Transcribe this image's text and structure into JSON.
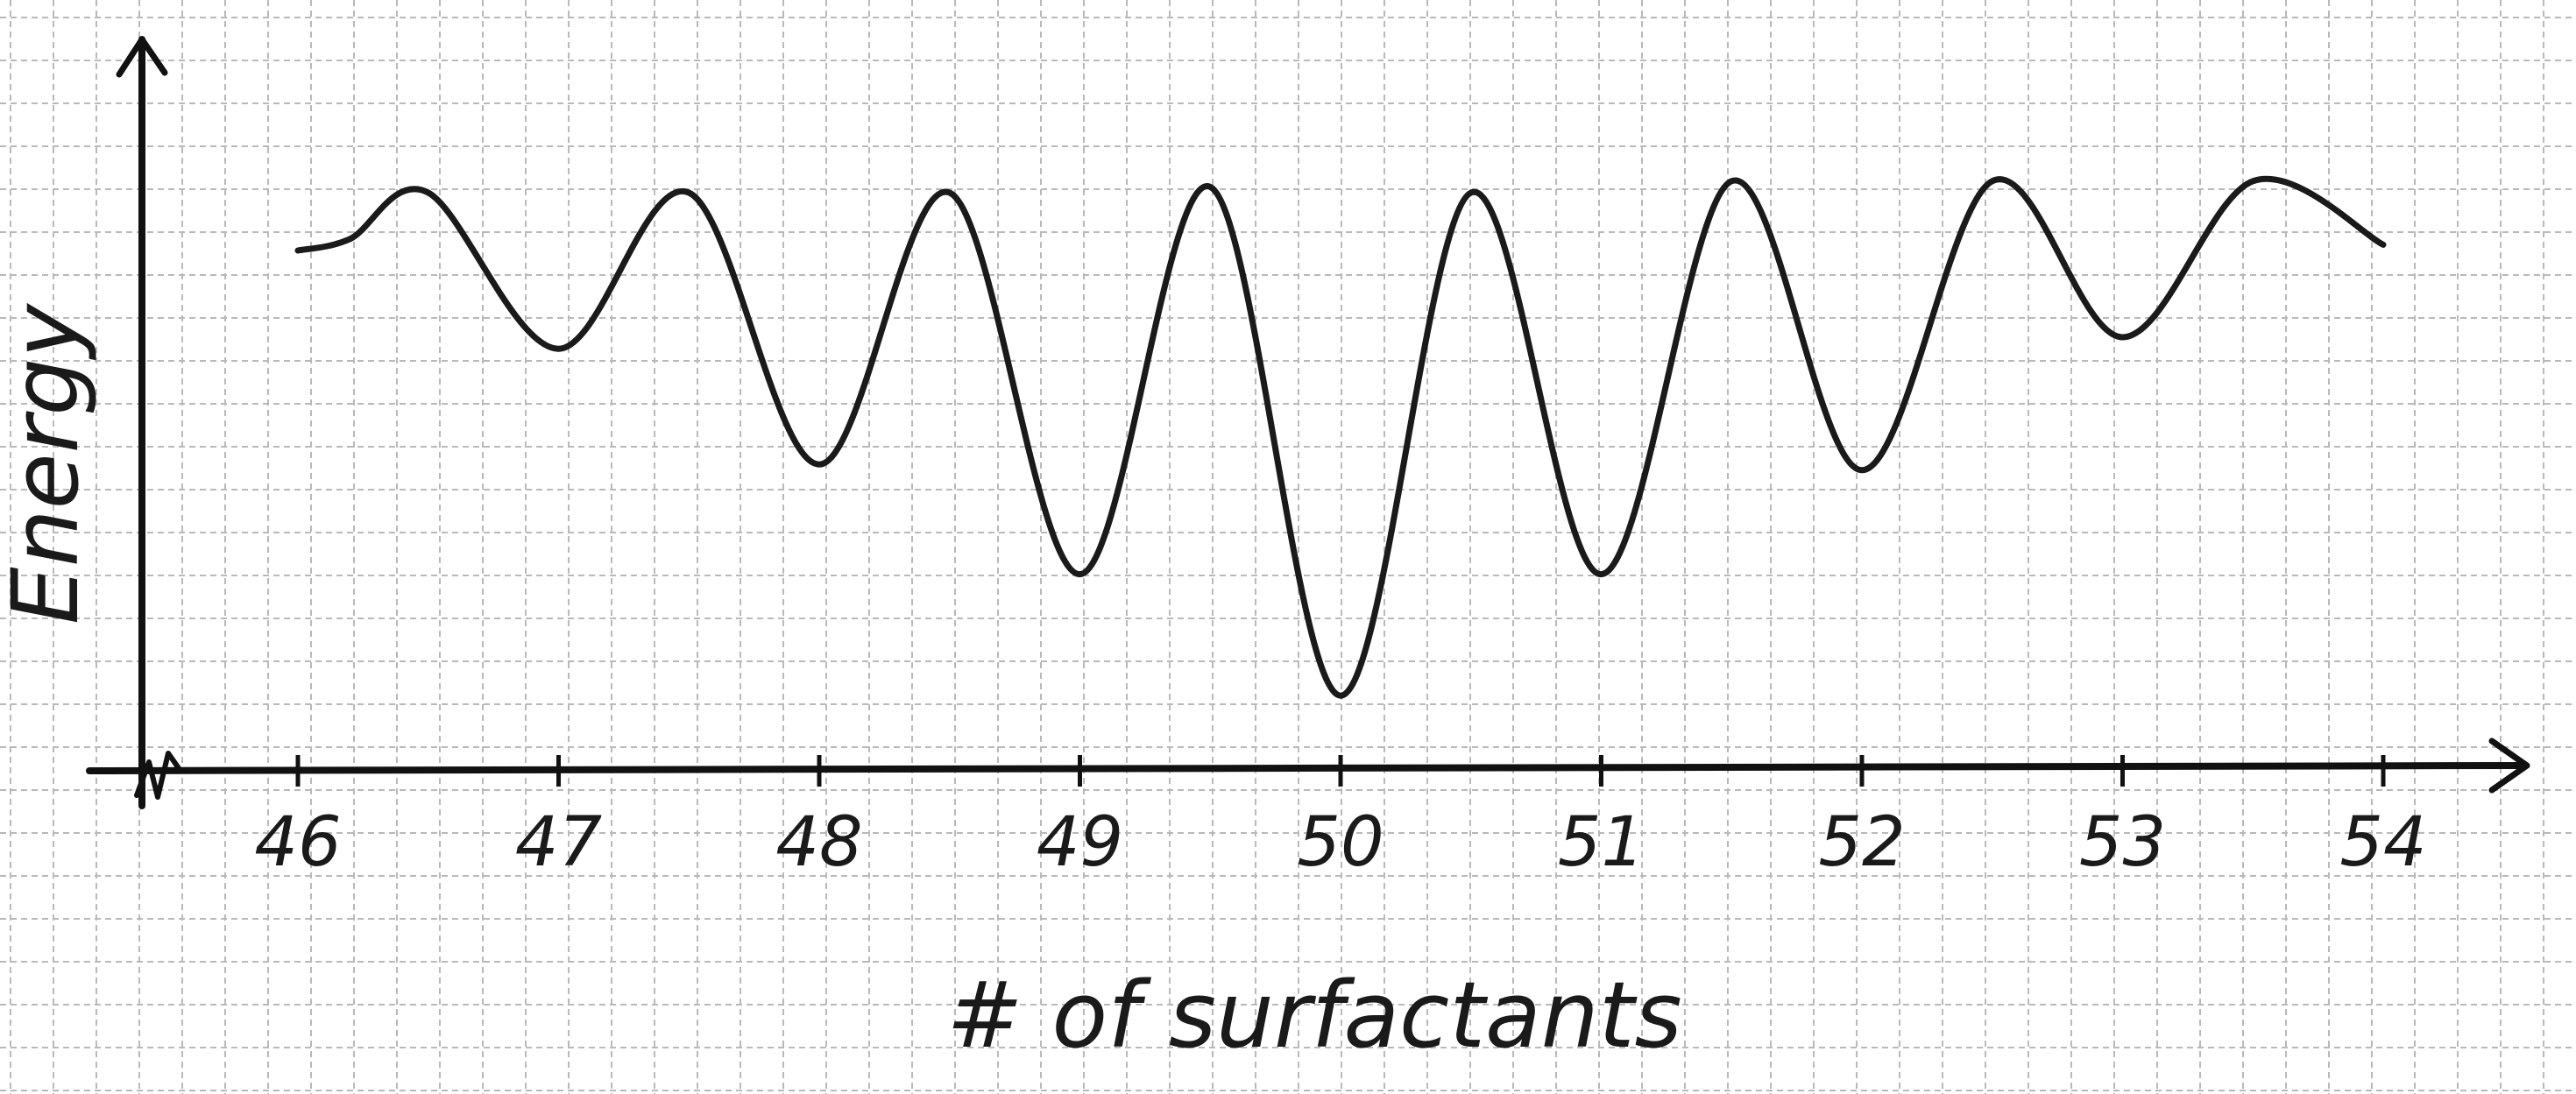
{
  "chart_data": {
    "type": "line",
    "title": "",
    "xlabel": "# of surfactants",
    "ylabel": "Energy",
    "x": [
      46,
      46.2,
      46.5,
      47,
      47.5,
      48,
      48.5,
      49,
      49.5,
      50,
      50.5,
      51,
      51.5,
      52,
      52.5,
      53,
      53.5,
      54
    ],
    "y": [
      9.0,
      9.2,
      10.0,
      7.3,
      10.0,
      5.3,
      10.0,
      3.4,
      10.1,
      1.3,
      10.0,
      3.4,
      10.2,
      5.2,
      10.2,
      7.5,
      10.2,
      9.1
    ],
    "xticks": [
      "46",
      "47",
      "48",
      "49",
      "50",
      "51",
      "52",
      "53",
      "54"
    ],
    "xlim": [
      45.4,
      54.6
    ],
    "ylim": [
      0,
      12.5
    ],
    "grid": true,
    "colors": {
      "line": "#1a1a1a",
      "axis": "#111111",
      "grid": "#b9b9b9",
      "background": "#ffffff"
    }
  }
}
